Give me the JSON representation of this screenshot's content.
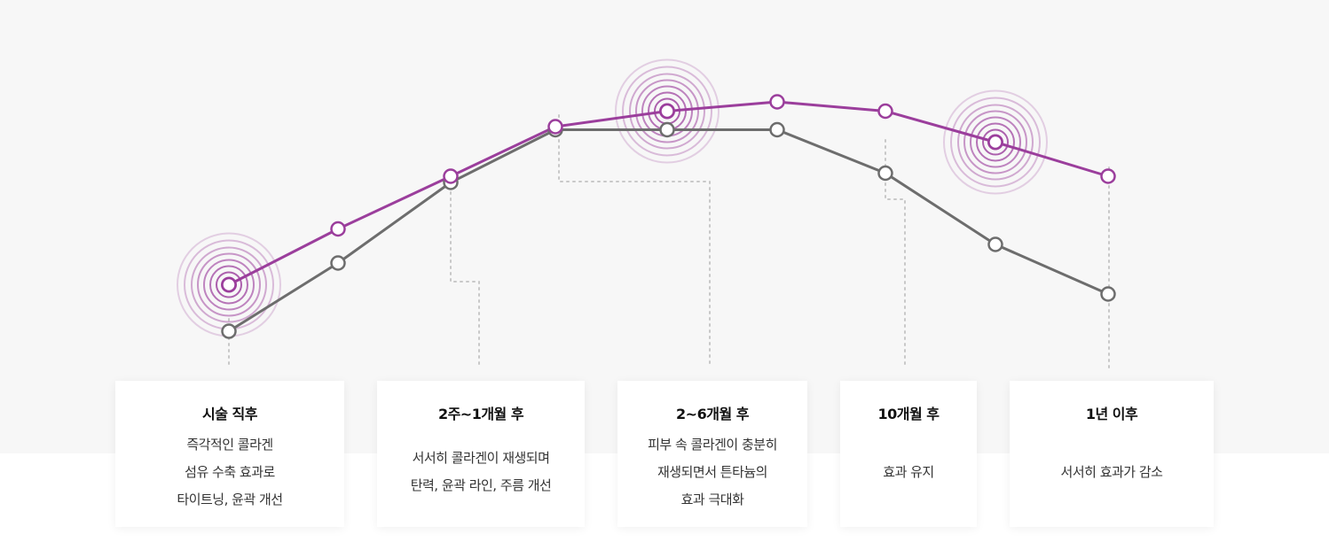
{
  "colors": {
    "series_a": "#9b3e9c",
    "series_b": "#6d6d6d",
    "ring": "#9b3e9c",
    "connector": "#c8c8c8",
    "panel_bg": "#f7f7f7"
  },
  "chart_data": {
    "type": "line",
    "series": [
      {
        "values": [
          25,
          43,
          60,
          76,
          81,
          84,
          81,
          71,
          60
        ]
      },
      {
        "values": [
          10,
          32,
          58,
          75,
          75,
          75,
          61,
          38,
          22
        ]
      }
    ],
    "ylim": [
      0,
      100
    ],
    "highlighted_points": [
      0,
      4,
      7
    ],
    "grid": false
  },
  "cards": [
    {
      "title": "시술 직후",
      "desc": "즉각적인 콜라겐\n섬유 수축 효과로\n타이트닝, 윤곽 개선"
    },
    {
      "title": "2주~1개월 후",
      "desc": "서서히 콜라겐이 재생되며\n탄력, 윤곽 라인, 주름 개선"
    },
    {
      "title": "2~6개월 후",
      "desc": "피부 속 콜라겐이 충분히\n재생되면서 튼타늄의\n효과 극대화"
    },
    {
      "title": "10개월 후",
      "desc": "효과 유지"
    },
    {
      "title": "1년 이후",
      "desc": "서서히 효과가 감소"
    }
  ]
}
